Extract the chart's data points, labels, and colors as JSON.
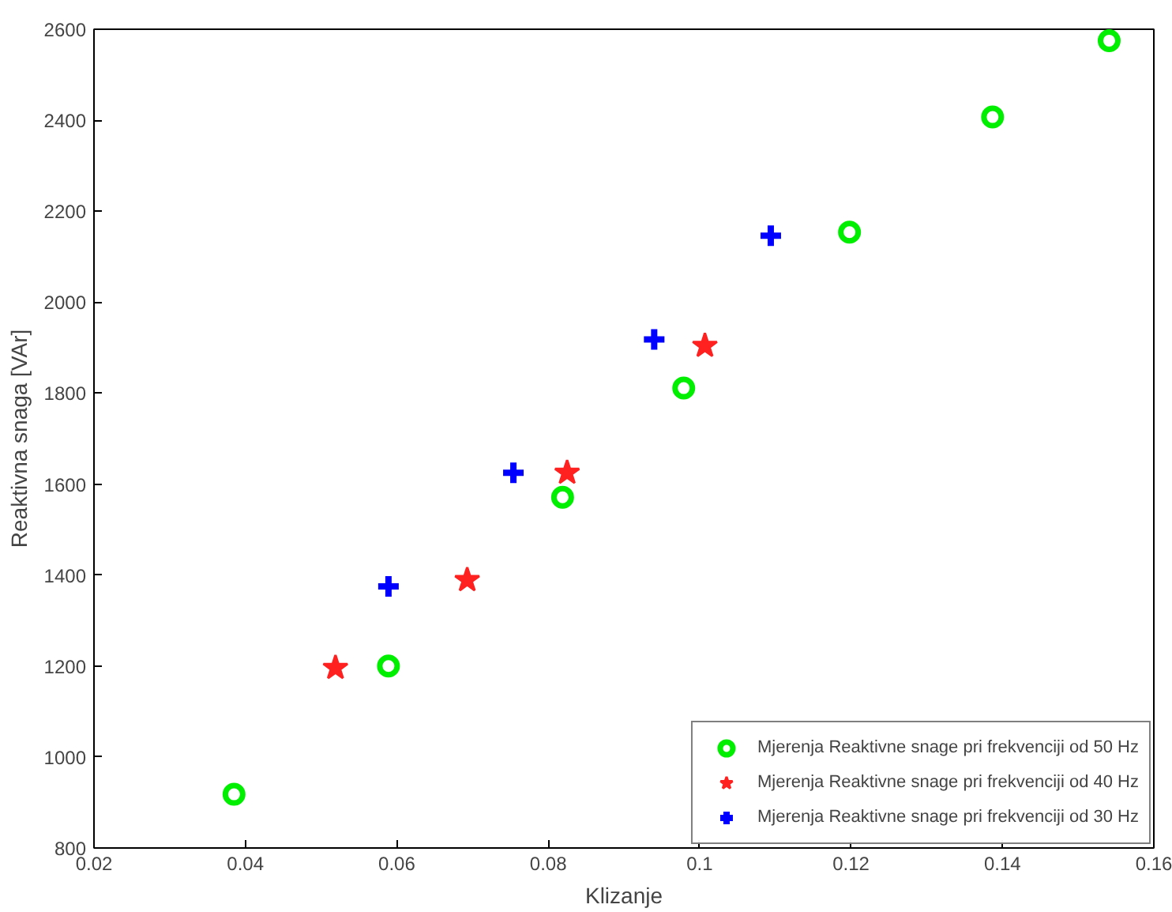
{
  "chart_data": {
    "type": "scatter",
    "xlabel": "Klizanje",
    "ylabel": "Reaktivna snaga [VAr]",
    "xlim": [
      0.02,
      0.16
    ],
    "ylim": [
      800,
      2600
    ],
    "xticks": [
      0.02,
      0.04,
      0.06,
      0.08,
      0.1,
      0.12,
      0.14,
      0.16
    ],
    "yticks": [
      800,
      1000,
      1200,
      1400,
      1600,
      1800,
      2000,
      2200,
      2400,
      2600
    ],
    "grid": false,
    "legend": "bottom right",
    "series": [
      {
        "name": "Mjerenja Reaktivne snage pri frekvenciji od 50 Hz",
        "color": "#00ee00",
        "marker": "circle",
        "x": [
          0.0385,
          0.0589,
          0.0819,
          0.0979,
          0.1198,
          0.1387,
          0.1541
        ],
        "values": [
          918,
          1200,
          1571,
          1811,
          2154,
          2407,
          2575
        ]
      },
      {
        "name": "Mjerenja Reaktivne snage pri frekvenciji od 40 Hz",
        "color": "#ff2020",
        "marker": "star",
        "x": [
          0.0519,
          0.0693,
          0.0825,
          0.1007
        ],
        "values": [
          1196,
          1389,
          1625,
          1904
        ]
      },
      {
        "name": "Mjerenja Reaktivne snage pri frekvenciji od 30 Hz",
        "color": "#0000ff",
        "marker": "cross",
        "x": [
          0.0589,
          0.0754,
          0.094,
          0.1094
        ],
        "values": [
          1375,
          1625,
          1918,
          2146
        ]
      }
    ]
  }
}
